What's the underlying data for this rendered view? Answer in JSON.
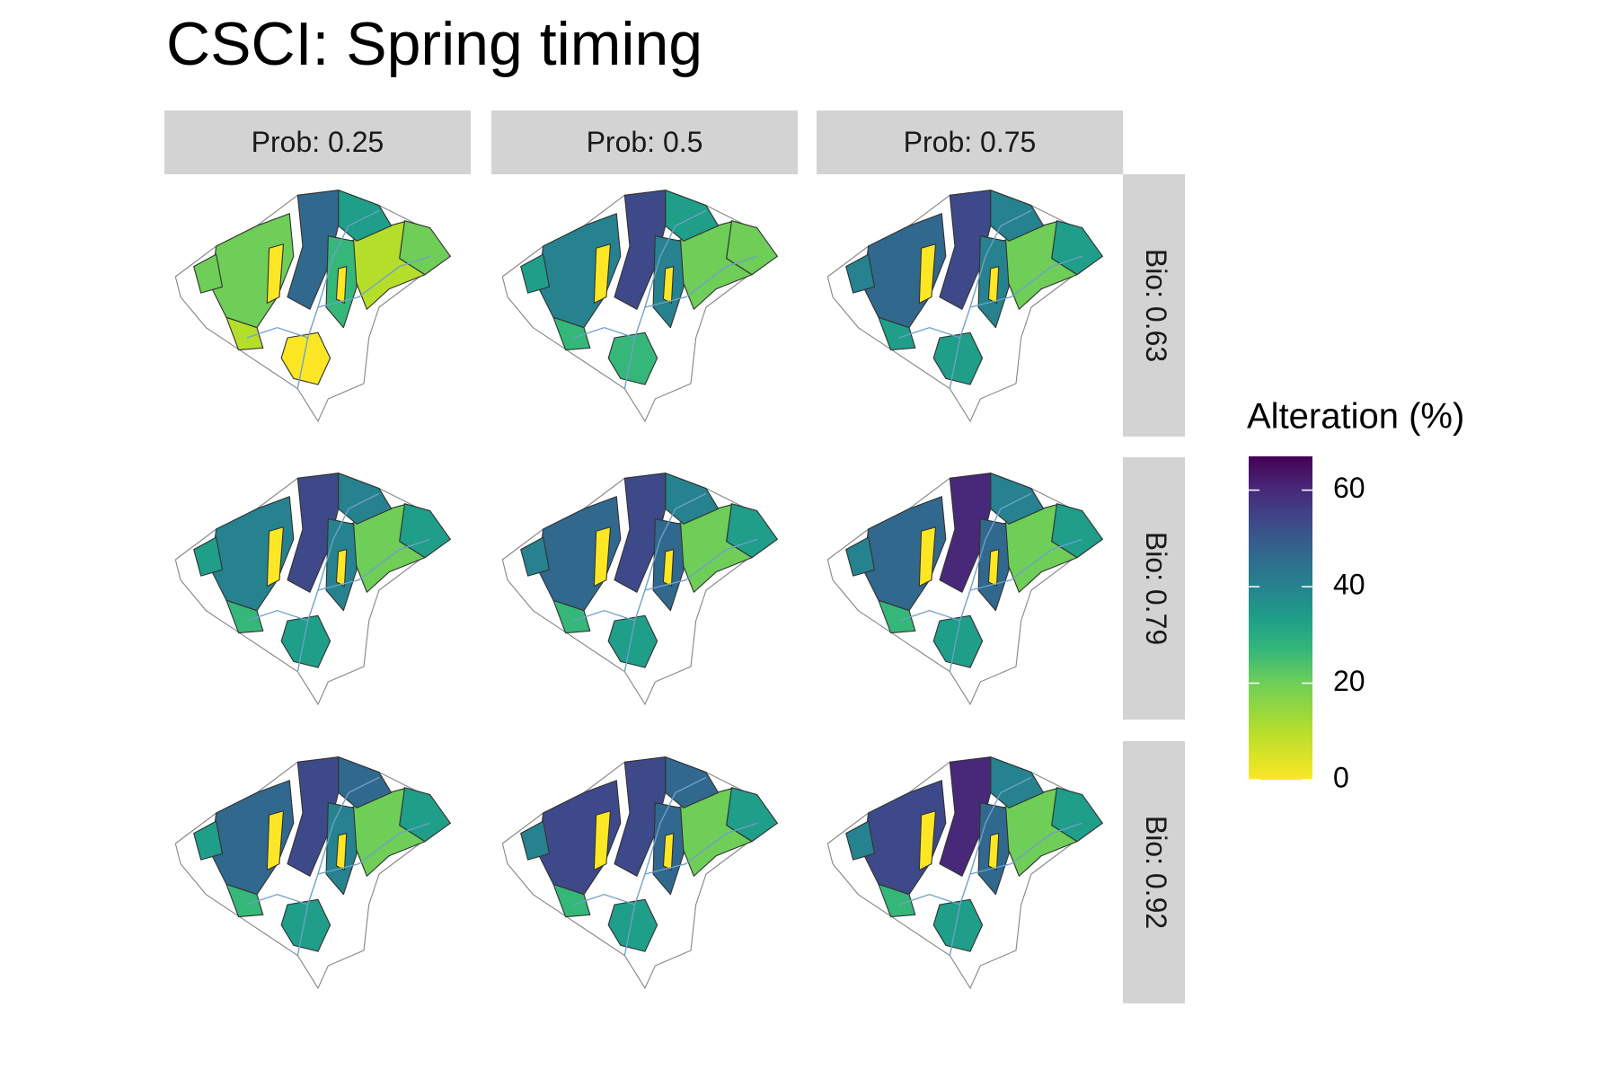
{
  "chart_data": {
    "type": "map",
    "title": "CSCI: Spring timing",
    "facet_columns": [
      "Prob: 0.25",
      "Prob: 0.5",
      "Prob: 0.75"
    ],
    "facet_rows": [
      "Bio: 0.63",
      "Bio: 0.79",
      "Bio: 0.92"
    ],
    "legend": {
      "title": "Alteration (%)",
      "lim": [
        0,
        67
      ],
      "ticks": [
        0,
        20,
        40,
        60
      ]
    }
  }
}
